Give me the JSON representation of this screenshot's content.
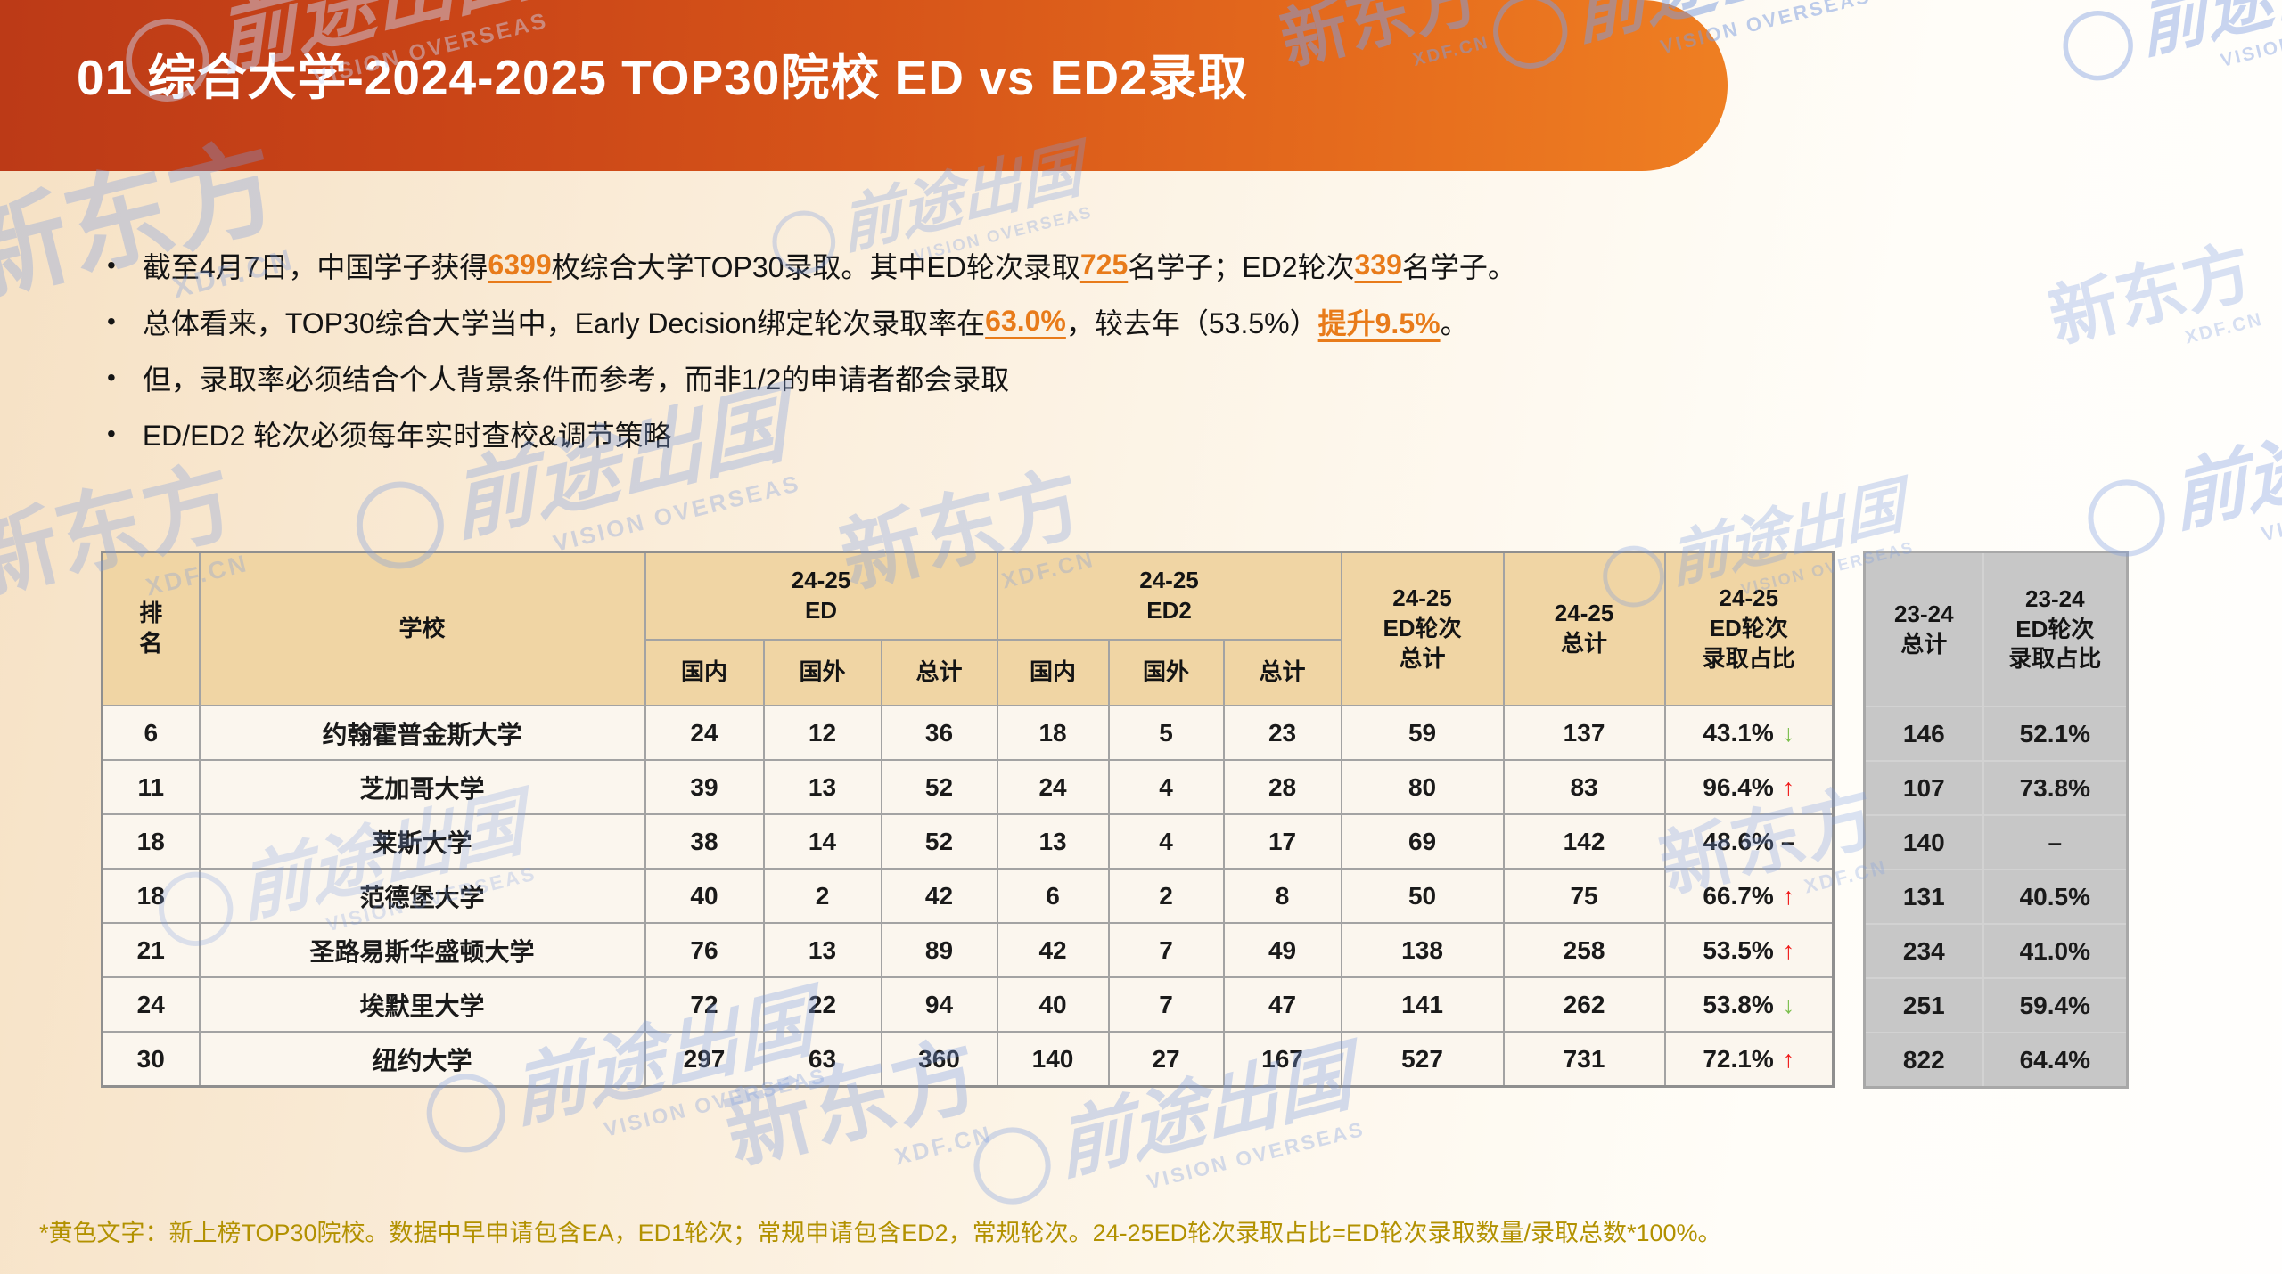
{
  "header": {
    "title": "01 综合大学-2024-2025 TOP30院校 ED vs ED2录取"
  },
  "watermarks": {
    "brand1": "新东方",
    "brand1_sub": "XDF.CN",
    "brand2": "前途出国",
    "brand2_sub": "VISION OVERSEAS",
    "separator": "|"
  },
  "bullets": [
    {
      "segments": [
        {
          "text": "截至4月7日，中国学子获得"
        },
        {
          "text": "6399",
          "highlight": true
        },
        {
          "text": "枚综合大学TOP30录取。其中ED轮次录取"
        },
        {
          "text": "725",
          "highlight": true
        },
        {
          "text": "名学子；ED2轮次"
        },
        {
          "text": "339",
          "highlight": true
        },
        {
          "text": "名学子。"
        }
      ]
    },
    {
      "segments": [
        {
          "text": "总体看来，TOP30综合大学当中，Early Decision绑定轮次录取率在"
        },
        {
          "text": "63.0%",
          "highlight": true
        },
        {
          "text": "，较去年（53.5%）"
        },
        {
          "text": "提升9.5%",
          "highlight": true
        },
        {
          "text": "。"
        }
      ]
    },
    {
      "segments": [
        {
          "text": "但，录取率必须结合个人背景条件而参考，而非1/2的申请者都会录取"
        }
      ]
    },
    {
      "segments": [
        {
          "text": "ED/ED2 轮次必须每年实时查校&调节策略"
        }
      ]
    }
  ],
  "table": {
    "headers": {
      "rank": "排\n名",
      "school": "学校",
      "ed_group": "24-25\nED",
      "ed2_group": "24-25\nED2",
      "domestic": "国内",
      "overseas": "国外",
      "subtotal": "总计",
      "ed_round_total": "24-25\nED轮次\n总计",
      "total": "24-25\n总计",
      "ed_share": "24-25\nED轮次\n录取占比"
    },
    "trend_glyphs": {
      "up": "↑",
      "down": "↓",
      "flat": "–"
    },
    "rows": [
      {
        "rank": "6",
        "school": "约翰霍普金斯大学",
        "ed": [
          "24",
          "12",
          "36"
        ],
        "ed2": [
          "18",
          "5",
          "23"
        ],
        "ed_round_total": "59",
        "total": "137",
        "ed_share": "43.1%",
        "trend": "down",
        "prev_total": "146",
        "prev_share": "52.1%"
      },
      {
        "rank": "11",
        "school": "芝加哥大学",
        "ed": [
          "39",
          "13",
          "52"
        ],
        "ed2": [
          "24",
          "4",
          "28"
        ],
        "ed_round_total": "80",
        "total": "83",
        "ed_share": "96.4%",
        "trend": "up",
        "prev_total": "107",
        "prev_share": "73.8%"
      },
      {
        "rank": "18",
        "school": "莱斯大学",
        "ed": [
          "38",
          "14",
          "52"
        ],
        "ed2": [
          "13",
          "4",
          "17"
        ],
        "ed_round_total": "69",
        "total": "142",
        "ed_share": "48.6%",
        "trend": "flat",
        "prev_total": "140",
        "prev_share": "–"
      },
      {
        "rank": "18",
        "school": "范德堡大学",
        "ed": [
          "40",
          "2",
          "42"
        ],
        "ed2": [
          "6",
          "2",
          "8"
        ],
        "ed_round_total": "50",
        "total": "75",
        "ed_share": "66.7%",
        "trend": "up",
        "prev_total": "131",
        "prev_share": "40.5%"
      },
      {
        "rank": "21",
        "school": "圣路易斯华盛顿大学",
        "ed": [
          "76",
          "13",
          "89"
        ],
        "ed2": [
          "42",
          "7",
          "49"
        ],
        "ed_round_total": "138",
        "total": "258",
        "ed_share": "53.5%",
        "trend": "up",
        "prev_total": "234",
        "prev_share": "41.0%"
      },
      {
        "rank": "24",
        "school": "埃默里大学",
        "ed": [
          "72",
          "22",
          "94"
        ],
        "ed2": [
          "40",
          "7",
          "47"
        ],
        "ed_round_total": "141",
        "total": "262",
        "ed_share": "53.8%",
        "trend": "down",
        "prev_total": "251",
        "prev_share": "59.4%"
      },
      {
        "rank": "30",
        "school": "纽约大学",
        "ed": [
          "297",
          "63",
          "360"
        ],
        "ed2": [
          "140",
          "27",
          "167"
        ],
        "ed_round_total": "527",
        "total": "731",
        "ed_share": "72.1%",
        "trend": "up",
        "prev_total": "822",
        "prev_share": "64.4%"
      }
    ]
  },
  "prev_table": {
    "headers": {
      "total": "23-24\n总计",
      "ed_share": "23-24\nED轮次\n录取占比"
    }
  },
  "footnote": "*黄色文字：新上榜TOP30院校。数据中早申请包含EA，ED1轮次；常规申请包含ED2，常规轮次。24-25ED轮次录取占比=ED轮次录取数量/录取总数*100%。",
  "colors": {
    "banner_left": "#bc3a17",
    "banner_right": "#ef7f22",
    "accent_orange": "#e87b1a",
    "table_header_fill": "#f0d5a4",
    "table_row_fill": "#fbf6ee",
    "prev_table_fill": "#c7c7c7",
    "trend_up_red": "#f01919",
    "trend_down_green": "#7cbf4e",
    "footnote_gold": "#b29100",
    "watermark_blue": "#7d9de0"
  }
}
